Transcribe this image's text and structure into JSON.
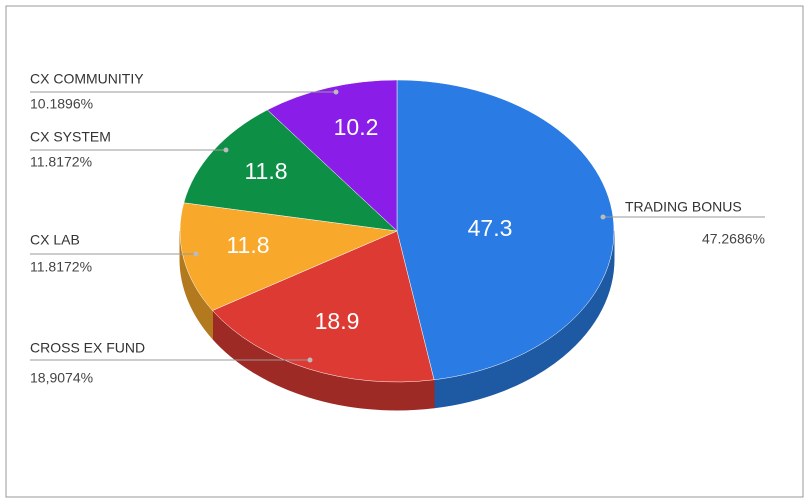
{
  "chart_data": {
    "type": "pie3d",
    "categories": [
      "TRADING BONUS",
      "CROSS EX FUND",
      "CX LAB",
      "CX SYSTEM",
      "CX COMMUNITIY"
    ],
    "values": [
      47.2686,
      18.9074,
      11.8172,
      11.8172,
      10.1896
    ],
    "value_labels": [
      "47.3",
      "18.9",
      "11.8",
      "11.8",
      "10.2"
    ],
    "percent_labels": [
      "47.2686%",
      "18,9074%",
      "11.8172%",
      "11.8172%",
      "10.1896%"
    ],
    "colors": [
      "#2a7be4",
      "#dc3a33",
      "#f8a82b",
      "#0d8f46",
      "#8a1de8"
    ]
  }
}
